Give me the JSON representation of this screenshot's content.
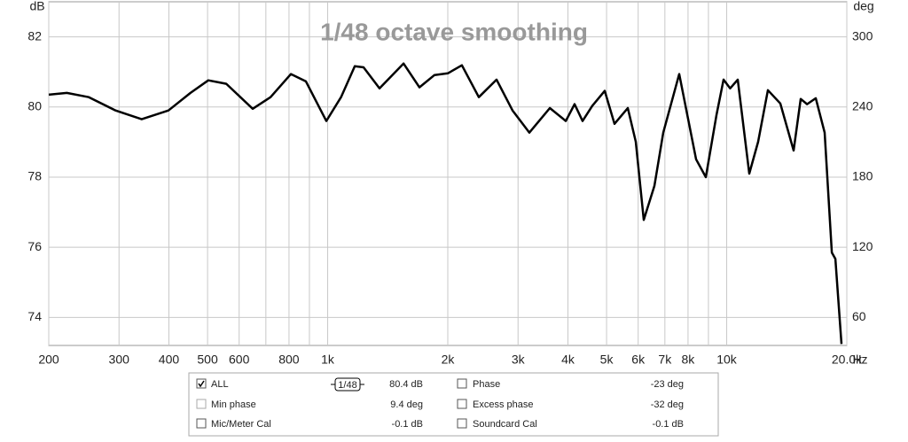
{
  "chart_data": {
    "type": "line",
    "title": "1/48 octave smoothing",
    "y_label": "dB",
    "y2_label": "deg",
    "x_label": "Hz",
    "xscale": "log",
    "xlim": [
      200,
      20000
    ],
    "ylim": [
      73.2,
      83
    ],
    "y2lim": [
      36,
      330
    ],
    "xticks": [
      200,
      300,
      400,
      500,
      600,
      800,
      {
        "value": 1000,
        "label": "1k"
      },
      {
        "value": 2000,
        "label": "2k"
      },
      {
        "value": 3000,
        "label": "3k"
      },
      {
        "value": 4000,
        "label": "4k"
      },
      {
        "value": 5000,
        "label": "5k"
      },
      {
        "value": 6000,
        "label": "6k"
      },
      {
        "value": 7000,
        "label": "7k"
      },
      {
        "value": 8000,
        "label": "8k"
      },
      {
        "value": 10000,
        "label": "10k"
      },
      {
        "value": 20000,
        "label": "20.0k"
      }
    ],
    "xminor": [
      700,
      900,
      9000
    ],
    "yticks": [
      74,
      76,
      78,
      80,
      82
    ],
    "y2ticks": [
      60,
      120,
      180,
      240,
      300
    ],
    "grid": true,
    "color": "#000000",
    "x": [
      200,
      222,
      252,
      294,
      342,
      399,
      453,
      502,
      557,
      649,
      719,
      809,
      882,
      992,
      1080,
      1169,
      1230,
      1349,
      1549,
      1698,
      1852,
      2000,
      2170,
      2392,
      2650,
      2906,
      3203,
      3604,
      3951,
      4157,
      4354,
      4604,
      4948,
      5234,
      5651,
      5918,
      6196,
      6589,
      6934,
      7604,
      8381,
      8866,
      9426,
      9820,
      10200,
      10660,
      11392,
      11990,
      12684,
      13626,
      14712,
      15324,
      15900,
      16720,
      17600,
      18340,
      18720,
      19400
    ],
    "values": [
      80.35,
      80.4,
      80.28,
      79.9,
      79.65,
      79.9,
      80.4,
      80.76,
      80.66,
      79.95,
      80.28,
      80.94,
      80.73,
      79.6,
      80.28,
      81.16,
      81.13,
      80.53,
      81.24,
      80.56,
      80.91,
      80.96,
      81.19,
      80.28,
      80.78,
      79.9,
      79.27,
      79.97,
      79.6,
      80.08,
      79.6,
      80.03,
      80.46,
      79.52,
      79.97,
      79.01,
      76.78,
      77.75,
      79.27,
      80.94,
      78.51,
      78.0,
      79.77,
      80.78,
      80.53,
      80.78,
      78.1,
      79.01,
      80.48,
      80.1,
      78.76,
      80.23,
      80.08,
      80.25,
      79.27,
      75.85,
      75.67,
      73.24
    ]
  },
  "legend_panel": {
    "smoothing_icon": "1/48",
    "rows": [
      [
        {
          "label": "ALL",
          "checked": true,
          "value": "80.4 dB"
        },
        {
          "label": "Phase",
          "checked": false,
          "value": "-23 deg"
        }
      ],
      [
        {
          "label": "Min phase",
          "checked": false,
          "value": "9.4 deg",
          "dimmed": true
        },
        {
          "label": "Excess phase",
          "checked": false,
          "value": "-32 deg"
        }
      ],
      [
        {
          "label": "Mic/Meter Cal",
          "checked": false,
          "value": "-0.1 dB"
        },
        {
          "label": "Soundcard Cal",
          "checked": false,
          "value": "-0.1 dB"
        }
      ]
    ]
  }
}
